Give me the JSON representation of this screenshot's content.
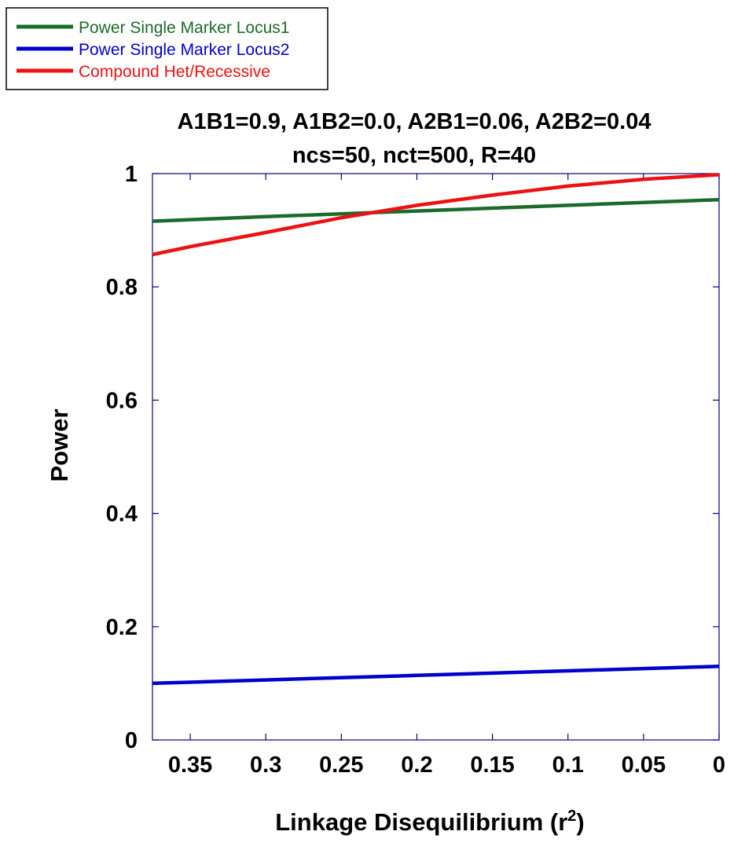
{
  "chart_data": {
    "type": "line",
    "title_line1": "A1B1=0.9, A1B2=0.0, A2B1=0.06, A2B2=0.04",
    "title_line2": "ncs=50, nct=500, R=40",
    "xlabel": "Linkage Disequilibrium (r",
    "xlabel_sup": "2",
    "xlabel_close": ")",
    "ylabel": "Power",
    "xlim": [
      0.375,
      0
    ],
    "ylim": [
      0,
      1
    ],
    "x_ticks": [
      0.35,
      0.3,
      0.25,
      0.2,
      0.15,
      0.1,
      0.05,
      0
    ],
    "x_tick_labels": [
      "0.35",
      "0.3",
      "0.25",
      "0.2",
      "0.15",
      "0.1",
      "0.05",
      "0"
    ],
    "y_ticks": [
      0,
      0.2,
      0.4,
      0.6,
      0.8,
      1
    ],
    "y_tick_labels": [
      "0",
      "0.2",
      "0.4",
      "0.6",
      "0.8",
      "1"
    ],
    "legend_position": "top-left",
    "series": [
      {
        "name": "Power Single Marker Locus1",
        "color": "#1a6b2a",
        "x": [
          0.375,
          0.3,
          0.2,
          0.1,
          0
        ],
        "values": [
          0.916,
          0.924,
          0.934,
          0.944,
          0.954
        ]
      },
      {
        "name": "Power Single Marker Locus2",
        "color": "#0000cc",
        "x": [
          0.375,
          0.3,
          0.2,
          0.1,
          0
        ],
        "values": [
          0.1,
          0.106,
          0.114,
          0.122,
          0.13
        ]
      },
      {
        "name": "Compound Het/Recessive",
        "color": "#ee1111",
        "x": [
          0.375,
          0.35,
          0.3,
          0.25,
          0.2,
          0.15,
          0.1,
          0.05,
          0
        ],
        "values": [
          0.857,
          0.871,
          0.896,
          0.922,
          0.944,
          0.962,
          0.978,
          0.99,
          0.998
        ]
      }
    ]
  }
}
